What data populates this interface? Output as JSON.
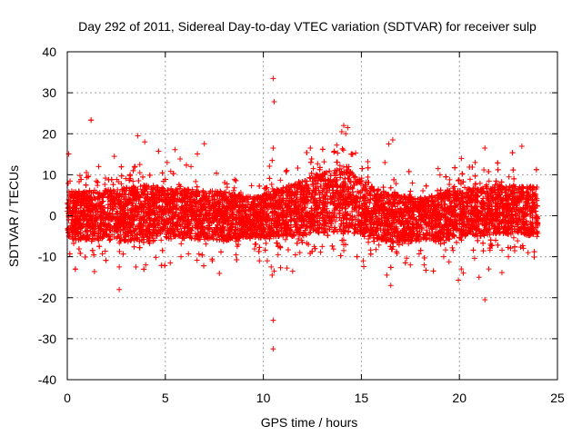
{
  "chart_data": {
    "type": "scatter",
    "title": "Day 292 of 2011, Sidereal Day-to-day VTEC variation (SDTVAR) for receiver sulp",
    "xlabel": "GPS time / hours",
    "ylabel": "SDTVAR / TECUs",
    "xlim": [
      0,
      25
    ],
    "ylim": [
      -40,
      40
    ],
    "xticks": [
      0,
      5,
      10,
      15,
      20,
      25
    ],
    "yticks": [
      -40,
      -30,
      -20,
      -10,
      0,
      10,
      20,
      30,
      40
    ],
    "xtick_labels": [
      "0",
      "5",
      "10",
      "15",
      "20",
      "25"
    ],
    "ytick_labels": [
      "-40",
      "-30",
      "-20",
      "-10",
      "0",
      "10",
      "20",
      "30",
      "40"
    ],
    "grid": true,
    "marker": "+",
    "series_color": "#ff0000",
    "data_range_x": [
      0,
      24
    ],
    "band_envelope": {
      "x": [
        0,
        2,
        4,
        6,
        8,
        9.5,
        11,
        12.5,
        14,
        15,
        16,
        17,
        18,
        19,
        20,
        21,
        22,
        23,
        24
      ],
      "y_center": [
        0,
        0.3,
        0.5,
        0.5,
        0,
        -0.5,
        0.8,
        2.5,
        4,
        2.5,
        0,
        -1,
        -0.8,
        -0.3,
        0.5,
        1,
        1.5,
        1.5,
        1
      ],
      "y_spread": [
        6,
        6,
        7,
        6,
        6,
        5,
        6,
        7,
        8,
        7,
        6,
        6,
        5,
        6,
        6,
        6,
        6,
        6,
        6
      ]
    },
    "outliers": [
      {
        "x": 10.5,
        "y": 33.5
      },
      {
        "x": 10.55,
        "y": 27.8
      },
      {
        "x": 10.5,
        "y": 16.5
      },
      {
        "x": 10.45,
        "y": 13.5
      },
      {
        "x": 10.5,
        "y": -25.5
      },
      {
        "x": 10.5,
        "y": -32.5
      },
      {
        "x": 10.45,
        "y": -14.5
      },
      {
        "x": 10.55,
        "y": -13.5
      },
      {
        "x": 10.4,
        "y": -12.5
      },
      {
        "x": 10.2,
        "y": -11
      },
      {
        "x": 3.6,
        "y": 19.5
      },
      {
        "x": 3.95,
        "y": 18
      },
      {
        "x": 3.7,
        "y": 12.5
      },
      {
        "x": 3.7,
        "y": 10.5
      },
      {
        "x": 2.4,
        "y": 14.5
      },
      {
        "x": 1.6,
        "y": 12
      },
      {
        "x": 2.65,
        "y": -12.5
      },
      {
        "x": 2.65,
        "y": -18
      },
      {
        "x": 3.5,
        "y": -12.5
      },
      {
        "x": 4.0,
        "y": -12
      },
      {
        "x": 5.8,
        "y": -10
      },
      {
        "x": 7.4,
        "y": -11
      },
      {
        "x": 9.8,
        "y": -11
      },
      {
        "x": 12.4,
        "y": 16.5
      },
      {
        "x": 12.6,
        "y": -7.5
      },
      {
        "x": 12.3,
        "y": -7
      },
      {
        "x": 13.0,
        "y": -7.5
      },
      {
        "x": 14.1,
        "y": 22
      },
      {
        "x": 14.3,
        "y": 21.5
      },
      {
        "x": 14.2,
        "y": 20
      },
      {
        "x": 14.0,
        "y": 20.5
      },
      {
        "x": 13.6,
        "y": 15.5
      },
      {
        "x": 14.1,
        "y": -8.5
      },
      {
        "x": 16.4,
        "y": 17.5
      },
      {
        "x": 16.6,
        "y": 18.5
      },
      {
        "x": 16.2,
        "y": 13
      },
      {
        "x": 16.5,
        "y": -17
      },
      {
        "x": 16.3,
        "y": -14.5
      },
      {
        "x": 15.1,
        "y": -11
      },
      {
        "x": 17.5,
        "y": -12
      },
      {
        "x": 18.2,
        "y": -12
      },
      {
        "x": 19.2,
        "y": -10
      },
      {
        "x": 20.1,
        "y": 14
      },
      {
        "x": 20.2,
        "y": -14
      },
      {
        "x": 20.1,
        "y": -13
      },
      {
        "x": 21.3,
        "y": 16.5
      },
      {
        "x": 21.3,
        "y": -20.5
      },
      {
        "x": 21.0,
        "y": -15
      },
      {
        "x": 21.5,
        "y": -13
      },
      {
        "x": 20.8,
        "y": 13
      },
      {
        "x": 22.5,
        "y": -10
      },
      {
        "x": 23.5,
        "y": -9
      }
    ]
  }
}
